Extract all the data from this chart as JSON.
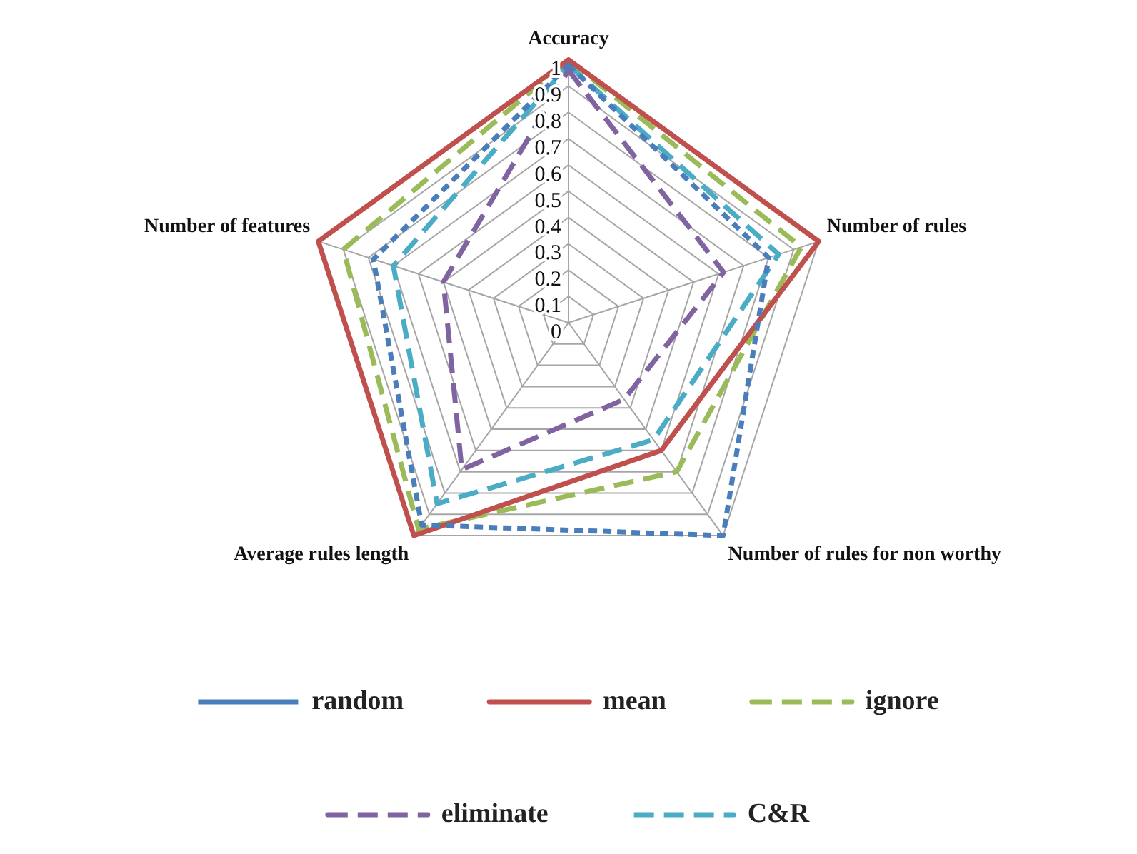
{
  "chart_data": {
    "type": "radar",
    "categories": [
      "Accuracy",
      "Number of rules",
      "Number of rules for non worthy",
      "Average rules length",
      "Number of features"
    ],
    "ylim": [
      0,
      1
    ],
    "yticks": [
      0,
      0.1,
      0.2,
      0.3,
      0.4,
      0.5,
      0.6,
      0.7,
      0.8,
      0.9,
      1
    ],
    "grid": true,
    "legend": "bottom",
    "marker": "none",
    "series": [
      {
        "name": "random",
        "color": "#4a7ebb",
        "line_style": "dotted",
        "values": [
          0.98,
          0.8,
          1,
          0.95,
          0.78
        ]
      },
      {
        "name": "mean",
        "color": "#c0504d",
        "line_style": "solid",
        "values": [
          1,
          1,
          0.6,
          1,
          1
        ]
      },
      {
        "name": "ignore",
        "color": "#9bbb59",
        "line_style": "dashed",
        "values": [
          1,
          0.93,
          0.7,
          0.97,
          0.9
        ]
      },
      {
        "name": "eliminate",
        "color": "#8064a2",
        "line_style": "dashed",
        "values": [
          0.96,
          0.62,
          0.36,
          0.69,
          0.5
        ]
      },
      {
        "name": "C&R",
        "color": "#4bacc6",
        "line_style": "dashed",
        "values": [
          0.98,
          0.84,
          0.55,
          0.85,
          0.7
        ]
      }
    ]
  }
}
